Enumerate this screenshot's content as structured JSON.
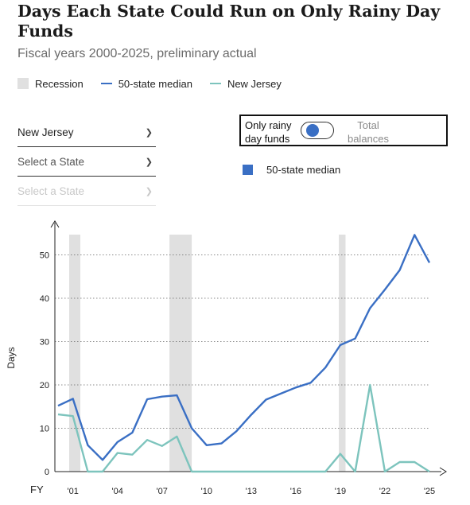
{
  "header": {
    "title": "Days Each State Could Run on Only Rainy Day Funds",
    "subtitle": "Fiscal years 2000-2025, preliminary actual"
  },
  "legend": {
    "recession": "Recession",
    "median": "50-state median",
    "nj": "New Jersey"
  },
  "controls": {
    "state1": "New Jersey",
    "state2": "Select a State",
    "state3": "Select a State",
    "toggle_left": "Only rainy day funds",
    "toggle_right": "Total balances",
    "median_label": "50-state median"
  },
  "colors": {
    "median": "#3a6fc4",
    "nj": "#7dc4bd",
    "recession": "#e0e0e0",
    "toggle_knob": "#3a6fc4"
  },
  "chart_data": {
    "type": "line",
    "x": [
      2000,
      2001,
      2002,
      2003,
      2004,
      2005,
      2006,
      2007,
      2008,
      2009,
      2010,
      2011,
      2012,
      2013,
      2014,
      2015,
      2016,
      2017,
      2018,
      2019,
      2020,
      2021,
      2022,
      2023,
      2024,
      2025
    ],
    "series": [
      {
        "name": "50-state median",
        "values": [
          15.2,
          16.8,
          6.1,
          2.7,
          6.8,
          9.0,
          16.7,
          17.3,
          17.6,
          10.0,
          6.1,
          6.5,
          9.3,
          13.1,
          16.6,
          18.0,
          19.4,
          20.5,
          24.0,
          29.2,
          30.7,
          37.7,
          42.0,
          46.5,
          54.6,
          48.2
        ]
      },
      {
        "name": "New Jersey",
        "values": [
          13.2,
          12.8,
          0,
          0,
          4.3,
          3.9,
          7.3,
          5.9,
          8.1,
          0,
          0,
          0,
          0,
          0,
          0,
          0,
          0,
          0,
          0,
          4.1,
          0,
          20.0,
          0,
          2.2,
          2.2,
          0
        ]
      }
    ],
    "recessions": [
      [
        2000.75,
        2001.5
      ],
      [
        2007.5,
        2009.0
      ],
      [
        2018.9,
        2019.35
      ]
    ],
    "xlabel": "FY",
    "ylabel": "Days",
    "ylim": [
      0,
      55
    ],
    "yticks": [
      0,
      10,
      20,
      30,
      40,
      50
    ],
    "xticks": [
      2001,
      2004,
      2007,
      2010,
      2013,
      2016,
      2019,
      2022,
      2025
    ],
    "xtick_labels": [
      "'01",
      "'04",
      "'07",
      "'10",
      "'13",
      "'16",
      "'19",
      "'22",
      "'25"
    ],
    "grid": true
  }
}
